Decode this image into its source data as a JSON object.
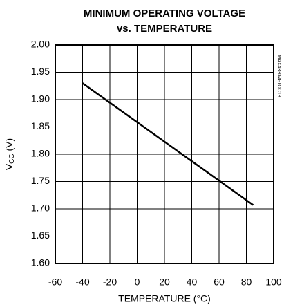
{
  "chart_data": {
    "type": "line",
    "title": [
      "MINIMUM OPERATING VOLTAGE",
      "vs. TEMPERATURE"
    ],
    "xlabel": "TEMPERATURE (°C)",
    "ylabel": {
      "main": "V",
      "sub": "CC",
      "unit": " (V)"
    },
    "annotation": "MAX4330/4-TOC18",
    "x": [
      -40,
      85
    ],
    "series": [
      {
        "name": "VCC",
        "color": "#000000",
        "values": [
          1.93,
          1.707
        ]
      }
    ],
    "xlim": [
      -60,
      100
    ],
    "xticks": [
      -60,
      -40,
      -20,
      0,
      20,
      40,
      60,
      80,
      100
    ],
    "ylim": [
      1.6,
      2.0
    ],
    "yticks": [
      {
        "value": 1.6,
        "label": "1.60"
      },
      1.65,
      {
        "value": 1.7,
        "label": "1.70"
      },
      1.75,
      {
        "value": 1.8,
        "label": "1.80"
      },
      1.85,
      {
        "value": 1.9,
        "label": "1.90"
      },
      1.95,
      {
        "value": 2.0,
        "label": "2.00"
      }
    ],
    "grid": true
  }
}
